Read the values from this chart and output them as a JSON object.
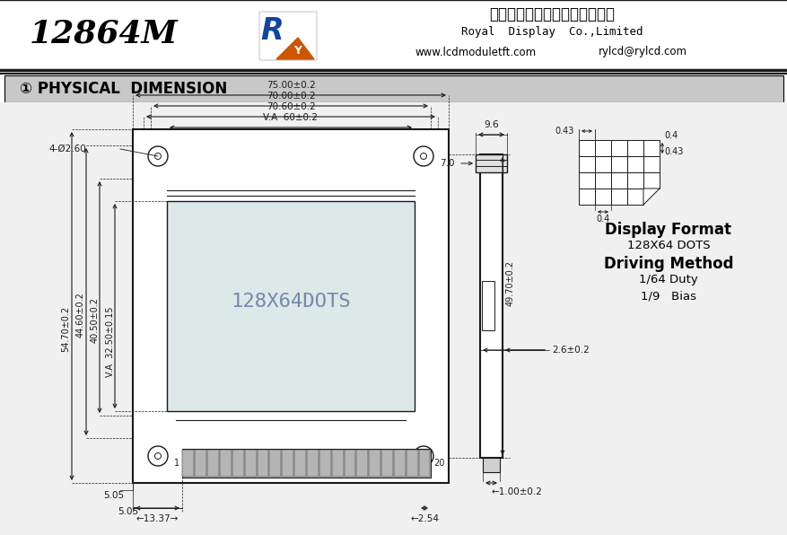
{
  "title_model": "12864M",
  "company_cn": "深圳市罗亚微电子科技有限公司",
  "company_en": "Royal  Display  Co.,Limited",
  "website": "www.lcdmoduletft.com",
  "email": "rylcd@rylcd.com",
  "section_title": "① PHYSICAL  DIMENSION",
  "dim_75": "75.00±0.2",
  "dim_70": "70.00±0.2",
  "dim_7060": "70.60±0.2",
  "dim_va60": "V.A  60±0.2",
  "dim_hole": "4-Ø2.60",
  "dim_5470": "54.70±0.2",
  "dim_4460": "44.60±0.2",
  "dim_4050": "40.50±0.2",
  "dim_va3250": "V.A  32.50±0.15",
  "dim_4970": "49.70±0.2",
  "dim_505": "5.05",
  "dim_1337": "13.37",
  "dim_254": "2.54",
  "dim_96": "9.6",
  "dim_70s": "7.0",
  "dim_26": "2.6±0.2",
  "dim_100": "1.00±0.2",
  "dim_043a": "0.43",
  "dim_04a": "0.4",
  "dim_043b": "0.43",
  "dim_04b": "0.4",
  "lcd_text": "128X64DOTS",
  "pin1": "1",
  "pin20": "20",
  "display_format_label": "Display Format",
  "display_format_value": "128X64 DOTS",
  "driving_method_label": "Driving Method",
  "driving_duty": "1/64 Duty",
  "driving_bias": "1/9   Bias",
  "bg_main": "#f0f0f0",
  "line_color": "#1a1a1a",
  "dim_color": "#1a1a1a",
  "screen_color": "#dde8e8"
}
